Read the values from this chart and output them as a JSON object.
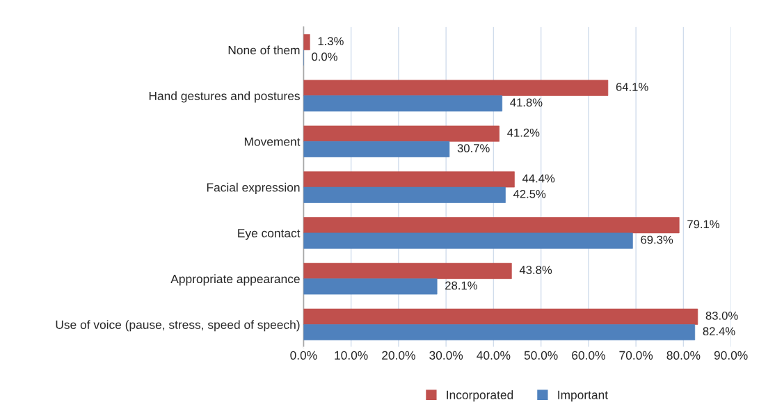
{
  "chart_data": {
    "type": "bar",
    "orientation": "horizontal",
    "categories": [
      "None of them",
      "Hand gestures and postures",
      "Movement",
      "Facial expression",
      "Eye contact",
      "Appropriate appearance",
      "Use of voice (pause, stress, speed of speech)"
    ],
    "series": [
      {
        "name": "Incorporated",
        "color": "#c0504d",
        "values": [
          1.3,
          64.1,
          41.2,
          44.4,
          79.1,
          43.8,
          83.0
        ],
        "value_labels": [
          "1.3%",
          "64.1%",
          "41.2%",
          "44.4%",
          "79.1%",
          "43.8%",
          "83.0%"
        ]
      },
      {
        "name": "Important",
        "color": "#4f81bd",
        "values": [
          0.0,
          41.8,
          30.7,
          42.5,
          69.3,
          28.1,
          82.4
        ],
        "value_labels": [
          "0.0%",
          "41.8%",
          "30.7%",
          "42.5%",
          "69.3%",
          "28.1%",
          "82.4%"
        ]
      }
    ],
    "xlim": [
      0,
      90
    ],
    "xticks": [
      {
        "value": 0,
        "label": "0.0%"
      },
      {
        "value": 10,
        "label": "10.0%"
      },
      {
        "value": 20,
        "label": "20.0%"
      },
      {
        "value": 30,
        "label": "30.0%"
      },
      {
        "value": 40,
        "label": "40.0%"
      },
      {
        "value": 50,
        "label": "50.0%"
      },
      {
        "value": 60,
        "label": "60.0%"
      },
      {
        "value": 70,
        "label": "70.0%"
      },
      {
        "value": 80,
        "label": "80.0%"
      },
      {
        "value": 90,
        "label": "90.0%"
      }
    ],
    "grid": "x",
    "legend": "bottom"
  }
}
